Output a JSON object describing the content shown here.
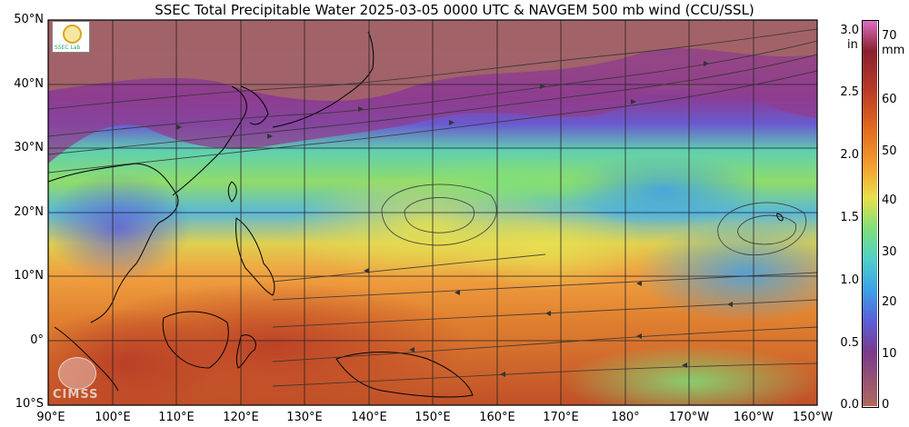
{
  "title": "SSEC Total Precipitable Water  2025-03-05 0000 UTC & NAVGEM 500 mb wind (CCU/SSL)",
  "map": {
    "lat_labels": [
      "50°N",
      "40°N",
      "30°N",
      "20°N",
      "10°N",
      "0°",
      "10°S"
    ],
    "lon_labels": [
      "90°E",
      "100°E",
      "110°E",
      "120°E",
      "130°E",
      "140°E",
      "150°E",
      "160°E",
      "170°E",
      "180°",
      "170°W",
      "160°W",
      "150°W"
    ],
    "lat_range": [
      50,
      -10
    ],
    "lon_range": [
      90,
      210
    ],
    "wind_arrow_color": "#333333",
    "coastline_color": "#000000",
    "grid_color": "#222222",
    "features": [
      "jet-stream-northwest-pacific",
      "anticyclone-155E-22N",
      "anticyclone-165W-20N",
      "deep-tropics-moisture-maritime-continent"
    ]
  },
  "colorbar": {
    "inch_unit": "in",
    "mm_unit": "mm",
    "inch_ticks": [
      "3.0",
      "2.5",
      "2.0",
      "1.5",
      "1.0",
      "0.5",
      "0.0"
    ],
    "mm_ticks": [
      "70",
      "60",
      "50",
      "40",
      "30",
      "20",
      "10",
      "0"
    ],
    "colors": [
      "#b06a5e",
      "#7a3a8c",
      "#5b5fd8",
      "#3da0e8",
      "#4fd0c8",
      "#7fe07a",
      "#e8e04a",
      "#f5a030",
      "#e06a1e",
      "#b83a26",
      "#8a2030",
      "#e070c8"
    ]
  },
  "logos": {
    "ssec_label": "SSEC Lab",
    "cimss_label": "CIMSS"
  }
}
